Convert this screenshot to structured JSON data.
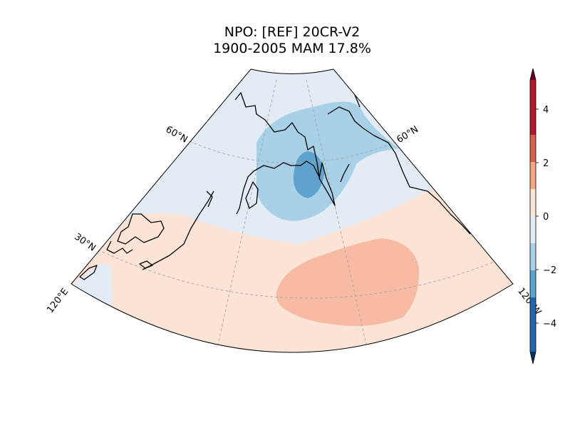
{
  "figure": {
    "title_line1": "NPO: [REF] 20CR-V2",
    "title_line2": "1900-2005 MAM 17.8%"
  },
  "map": {
    "projection": "conic sector, North Pacific",
    "lat_labels": [
      "60°N",
      "30°N",
      "60°N"
    ],
    "lon_labels": [
      "120°E",
      "120°W"
    ],
    "gridlines": "dashed grey"
  },
  "colorbar": {
    "ticks": [
      "4",
      "2",
      "0",
      "−2",
      "−4"
    ],
    "colors": {
      "c_ge4": "#67001f",
      "c_3_4": "#b2182b",
      "c_2_3": "#d6604d",
      "c_1_2": "#f4a582",
      "c_0_1": "#fbe3d6",
      "c_n1_0": "#e3ecf5",
      "c_n2_n1": "#a8d0e6",
      "c_n3_n2": "#5fa3cc",
      "c_n4_n3": "#2166ac",
      "c_le_n4": "#053061"
    }
  }
}
